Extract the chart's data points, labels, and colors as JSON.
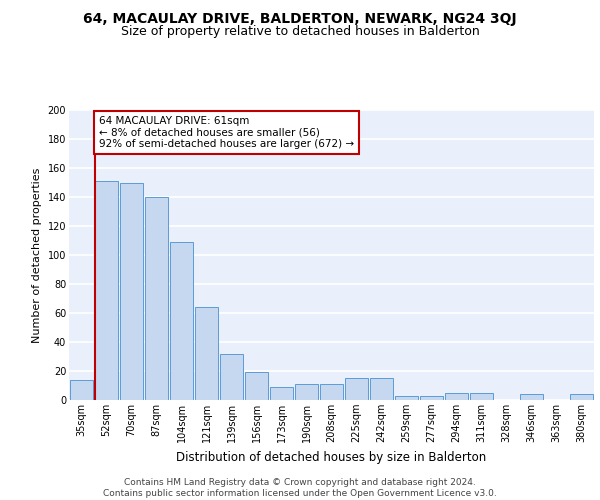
{
  "title1": "64, MACAULAY DRIVE, BALDERTON, NEWARK, NG24 3QJ",
  "title2": "Size of property relative to detached houses in Balderton",
  "xlabel": "Distribution of detached houses by size in Balderton",
  "ylabel": "Number of detached properties",
  "categories": [
    "35sqm",
    "52sqm",
    "70sqm",
    "87sqm",
    "104sqm",
    "121sqm",
    "139sqm",
    "156sqm",
    "173sqm",
    "190sqm",
    "208sqm",
    "225sqm",
    "242sqm",
    "259sqm",
    "277sqm",
    "294sqm",
    "311sqm",
    "328sqm",
    "346sqm",
    "363sqm",
    "380sqm"
  ],
  "values": [
    14,
    151,
    150,
    140,
    109,
    64,
    32,
    19,
    9,
    11,
    11,
    15,
    15,
    3,
    3,
    5,
    5,
    0,
    4,
    0,
    4
  ],
  "bar_color": "#c5d8f0",
  "bar_edge_color": "#5b9bd5",
  "vline_color": "#c00000",
  "annotation_text": "64 MACAULAY DRIVE: 61sqm\n← 8% of detached houses are smaller (56)\n92% of semi-detached houses are larger (672) →",
  "annotation_box_color": "white",
  "annotation_box_edge_color": "#c00000",
  "ylim": [
    0,
    200
  ],
  "yticks": [
    0,
    20,
    40,
    60,
    80,
    100,
    120,
    140,
    160,
    180,
    200
  ],
  "bg_color": "#eaf0fb",
  "footer_text": "Contains HM Land Registry data © Crown copyright and database right 2024.\nContains public sector information licensed under the Open Government Licence v3.0.",
  "grid_color": "white",
  "title1_fontsize": 10,
  "title2_fontsize": 9,
  "xlabel_fontsize": 8.5,
  "ylabel_fontsize": 8,
  "tick_fontsize": 7,
  "footer_fontsize": 6.5,
  "annotation_fontsize": 7.5
}
